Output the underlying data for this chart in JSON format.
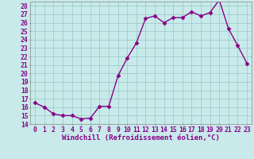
{
  "hours": [
    0,
    1,
    2,
    3,
    4,
    5,
    6,
    7,
    8,
    9,
    10,
    11,
    12,
    13,
    14,
    15,
    16,
    17,
    18,
    19,
    20,
    21,
    22,
    23
  ],
  "values": [
    16.5,
    16.0,
    15.2,
    15.0,
    15.0,
    14.6,
    14.7,
    16.1,
    16.1,
    19.7,
    21.8,
    23.6,
    26.5,
    26.8,
    26.0,
    26.6,
    26.6,
    27.3,
    26.8,
    27.2,
    28.7,
    25.3,
    23.3,
    21.2
  ],
  "line_color": "#880088",
  "marker": "D",
  "marker_size": 2.5,
  "bg_color": "#c8eaea",
  "grid_color": "#a0cccc",
  "xlabel": "Windchill (Refroidissement éolien,°C)",
  "ylim": [
    14,
    28.5
  ],
  "yticks": [
    14,
    15,
    16,
    17,
    18,
    19,
    20,
    21,
    22,
    23,
    24,
    25,
    26,
    27,
    28
  ],
  "xlabel_fontsize": 6.5,
  "tick_fontsize": 5.8,
  "line_width": 1.0
}
